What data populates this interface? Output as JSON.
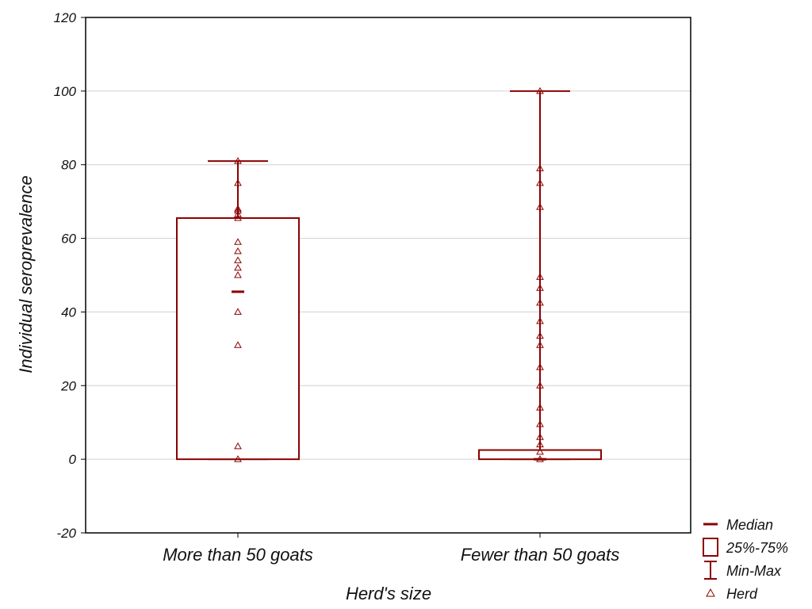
{
  "colors": {
    "series": "#8b0000",
    "grid": "#d0d0d0",
    "frame": "#000000",
    "background": "#ffffff"
  },
  "chart_data": {
    "type": "box",
    "title": "",
    "xlabel": "Herd's size",
    "ylabel": "Individual seroprevalence",
    "ylim": [
      -20,
      120
    ],
    "yticks": [
      -20,
      0,
      20,
      40,
      60,
      80,
      100,
      120
    ],
    "ytick_labels": [
      "-20",
      "0",
      "20",
      "40",
      "60",
      "80",
      "100",
      "120"
    ],
    "grid": "horizontal",
    "legend_position": "bottom-right",
    "legend": [
      {
        "label": "Median",
        "symbol": "median-dash"
      },
      {
        "label": "25%-75%",
        "symbol": "box"
      },
      {
        "label": "Min-Max",
        "symbol": "whisker"
      },
      {
        "label": "Herd",
        "symbol": "triangle"
      }
    ],
    "groups": [
      {
        "category": "More than 50 goats",
        "median": 45.5,
        "q1": 0,
        "q3": 65.5,
        "min": 0,
        "max": 81,
        "points": [
          0,
          3.5,
          31,
          40,
          50,
          52,
          54,
          56.5,
          59,
          65.5,
          66.5,
          67.5,
          68,
          75,
          81
        ]
      },
      {
        "category": "Fewer than 50 goats",
        "median": 0,
        "q1": 0,
        "q3": 2.5,
        "min": 0,
        "max": 100,
        "points": [
          0,
          2,
          4,
          6,
          9.5,
          14,
          20,
          25,
          31,
          33.5,
          37.5,
          42.5,
          46.5,
          49.5,
          68.5,
          75,
          79,
          100
        ]
      }
    ]
  }
}
